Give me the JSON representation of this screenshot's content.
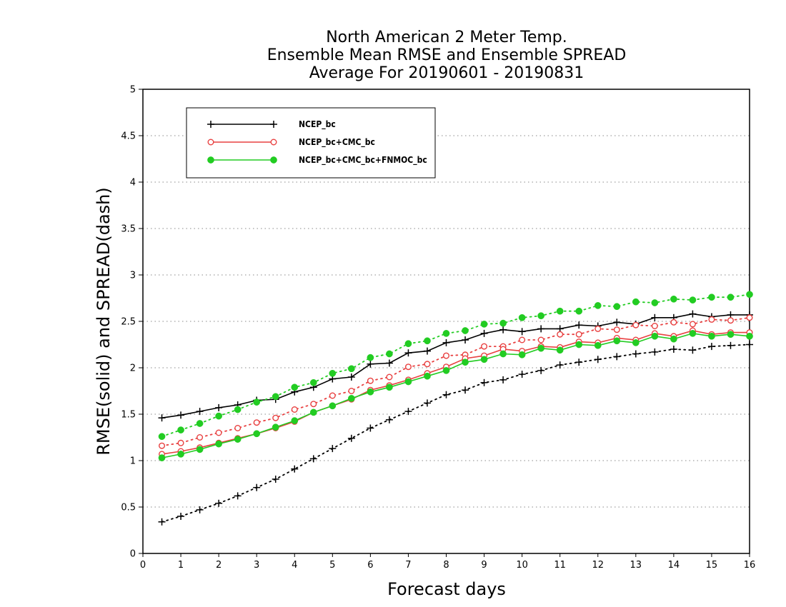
{
  "chart_data": {
    "type": "line",
    "title": [
      "North American 2 Meter Temp.",
      "Ensemble Mean RMSE and Ensemble SPREAD",
      "Average For 20190601 - 20190831"
    ],
    "xlabel": "Forecast days",
    "ylabel": "RMSE(solid) and SPREAD(dash)",
    "xlim": [
      0,
      16
    ],
    "ylim": [
      0,
      5
    ],
    "xticks": [
      "0",
      "1",
      "2",
      "3",
      "4",
      "5",
      "6",
      "7",
      "8",
      "9",
      "10",
      "11",
      "12",
      "13",
      "14",
      "15",
      "16"
    ],
    "yticks": [
      "0",
      "0.5",
      "1",
      "1.5",
      "2",
      "2.5",
      "3",
      "3.5",
      "4",
      "4.5",
      "5"
    ],
    "grid": "horizontal-dotted",
    "legend_position": "top-left",
    "x": [
      0.5,
      1,
      1.5,
      2,
      2.5,
      3,
      3.5,
      4,
      4.5,
      5,
      5.5,
      6,
      6.5,
      7,
      7.5,
      8,
      8.5,
      9,
      9.5,
      10,
      10.5,
      11,
      11.5,
      12,
      12.5,
      13,
      13.5,
      14,
      14.5,
      15,
      15.5,
      16
    ],
    "series": [
      {
        "name": "NCEP_bc",
        "color": "#000000",
        "marker": "plus",
        "rmse": [
          1.46,
          1.49,
          1.53,
          1.57,
          1.6,
          1.65,
          1.66,
          1.74,
          1.79,
          1.88,
          1.9,
          2.04,
          2.05,
          2.16,
          2.18,
          2.27,
          2.3,
          2.37,
          2.41,
          2.39,
          2.42,
          2.42,
          2.46,
          2.45,
          2.49,
          2.47,
          2.54,
          2.54,
          2.58,
          2.55,
          2.57,
          2.57
        ],
        "spread": [
          0.34,
          0.4,
          0.47,
          0.54,
          0.62,
          0.71,
          0.8,
          0.91,
          1.02,
          1.13,
          1.24,
          1.35,
          1.44,
          1.53,
          1.62,
          1.71,
          1.76,
          1.84,
          1.87,
          1.93,
          1.97,
          2.03,
          2.06,
          2.09,
          2.12,
          2.15,
          2.17,
          2.2,
          2.19,
          2.23,
          2.24,
          2.25
        ]
      },
      {
        "name": "NCEP_bc+CMC_bc",
        "color": "#e84040",
        "marker": "open-circle",
        "rmse": [
          1.07,
          1.1,
          1.14,
          1.19,
          1.24,
          1.29,
          1.35,
          1.42,
          1.52,
          1.59,
          1.66,
          1.76,
          1.81,
          1.87,
          1.94,
          2.01,
          2.1,
          2.13,
          2.2,
          2.18,
          2.23,
          2.22,
          2.28,
          2.27,
          2.32,
          2.3,
          2.37,
          2.34,
          2.4,
          2.36,
          2.38,
          2.38
        ],
        "spread": [
          1.16,
          1.19,
          1.25,
          1.3,
          1.35,
          1.41,
          1.46,
          1.55,
          1.61,
          1.7,
          1.75,
          1.86,
          1.9,
          2.01,
          2.04,
          2.13,
          2.14,
          2.23,
          2.23,
          2.3,
          2.3,
          2.36,
          2.36,
          2.42,
          2.41,
          2.46,
          2.45,
          2.49,
          2.47,
          2.52,
          2.51,
          2.54
        ]
      },
      {
        "name": "NCEP_bc+CMC_bc+FNMOC_bc",
        "color": "#22cc22",
        "marker": "filled-circle",
        "rmse": [
          1.03,
          1.07,
          1.12,
          1.18,
          1.23,
          1.29,
          1.36,
          1.43,
          1.52,
          1.59,
          1.67,
          1.74,
          1.79,
          1.85,
          1.91,
          1.97,
          2.06,
          2.09,
          2.15,
          2.14,
          2.21,
          2.19,
          2.25,
          2.24,
          2.29,
          2.27,
          2.34,
          2.31,
          2.37,
          2.34,
          2.36,
          2.34
        ],
        "spread": [
          1.26,
          1.33,
          1.4,
          1.48,
          1.55,
          1.63,
          1.69,
          1.79,
          1.84,
          1.94,
          1.99,
          2.11,
          2.15,
          2.26,
          2.29,
          2.37,
          2.4,
          2.47,
          2.48,
          2.54,
          2.56,
          2.61,
          2.61,
          2.67,
          2.66,
          2.71,
          2.7,
          2.74,
          2.73,
          2.76,
          2.76,
          2.79
        ]
      }
    ]
  }
}
